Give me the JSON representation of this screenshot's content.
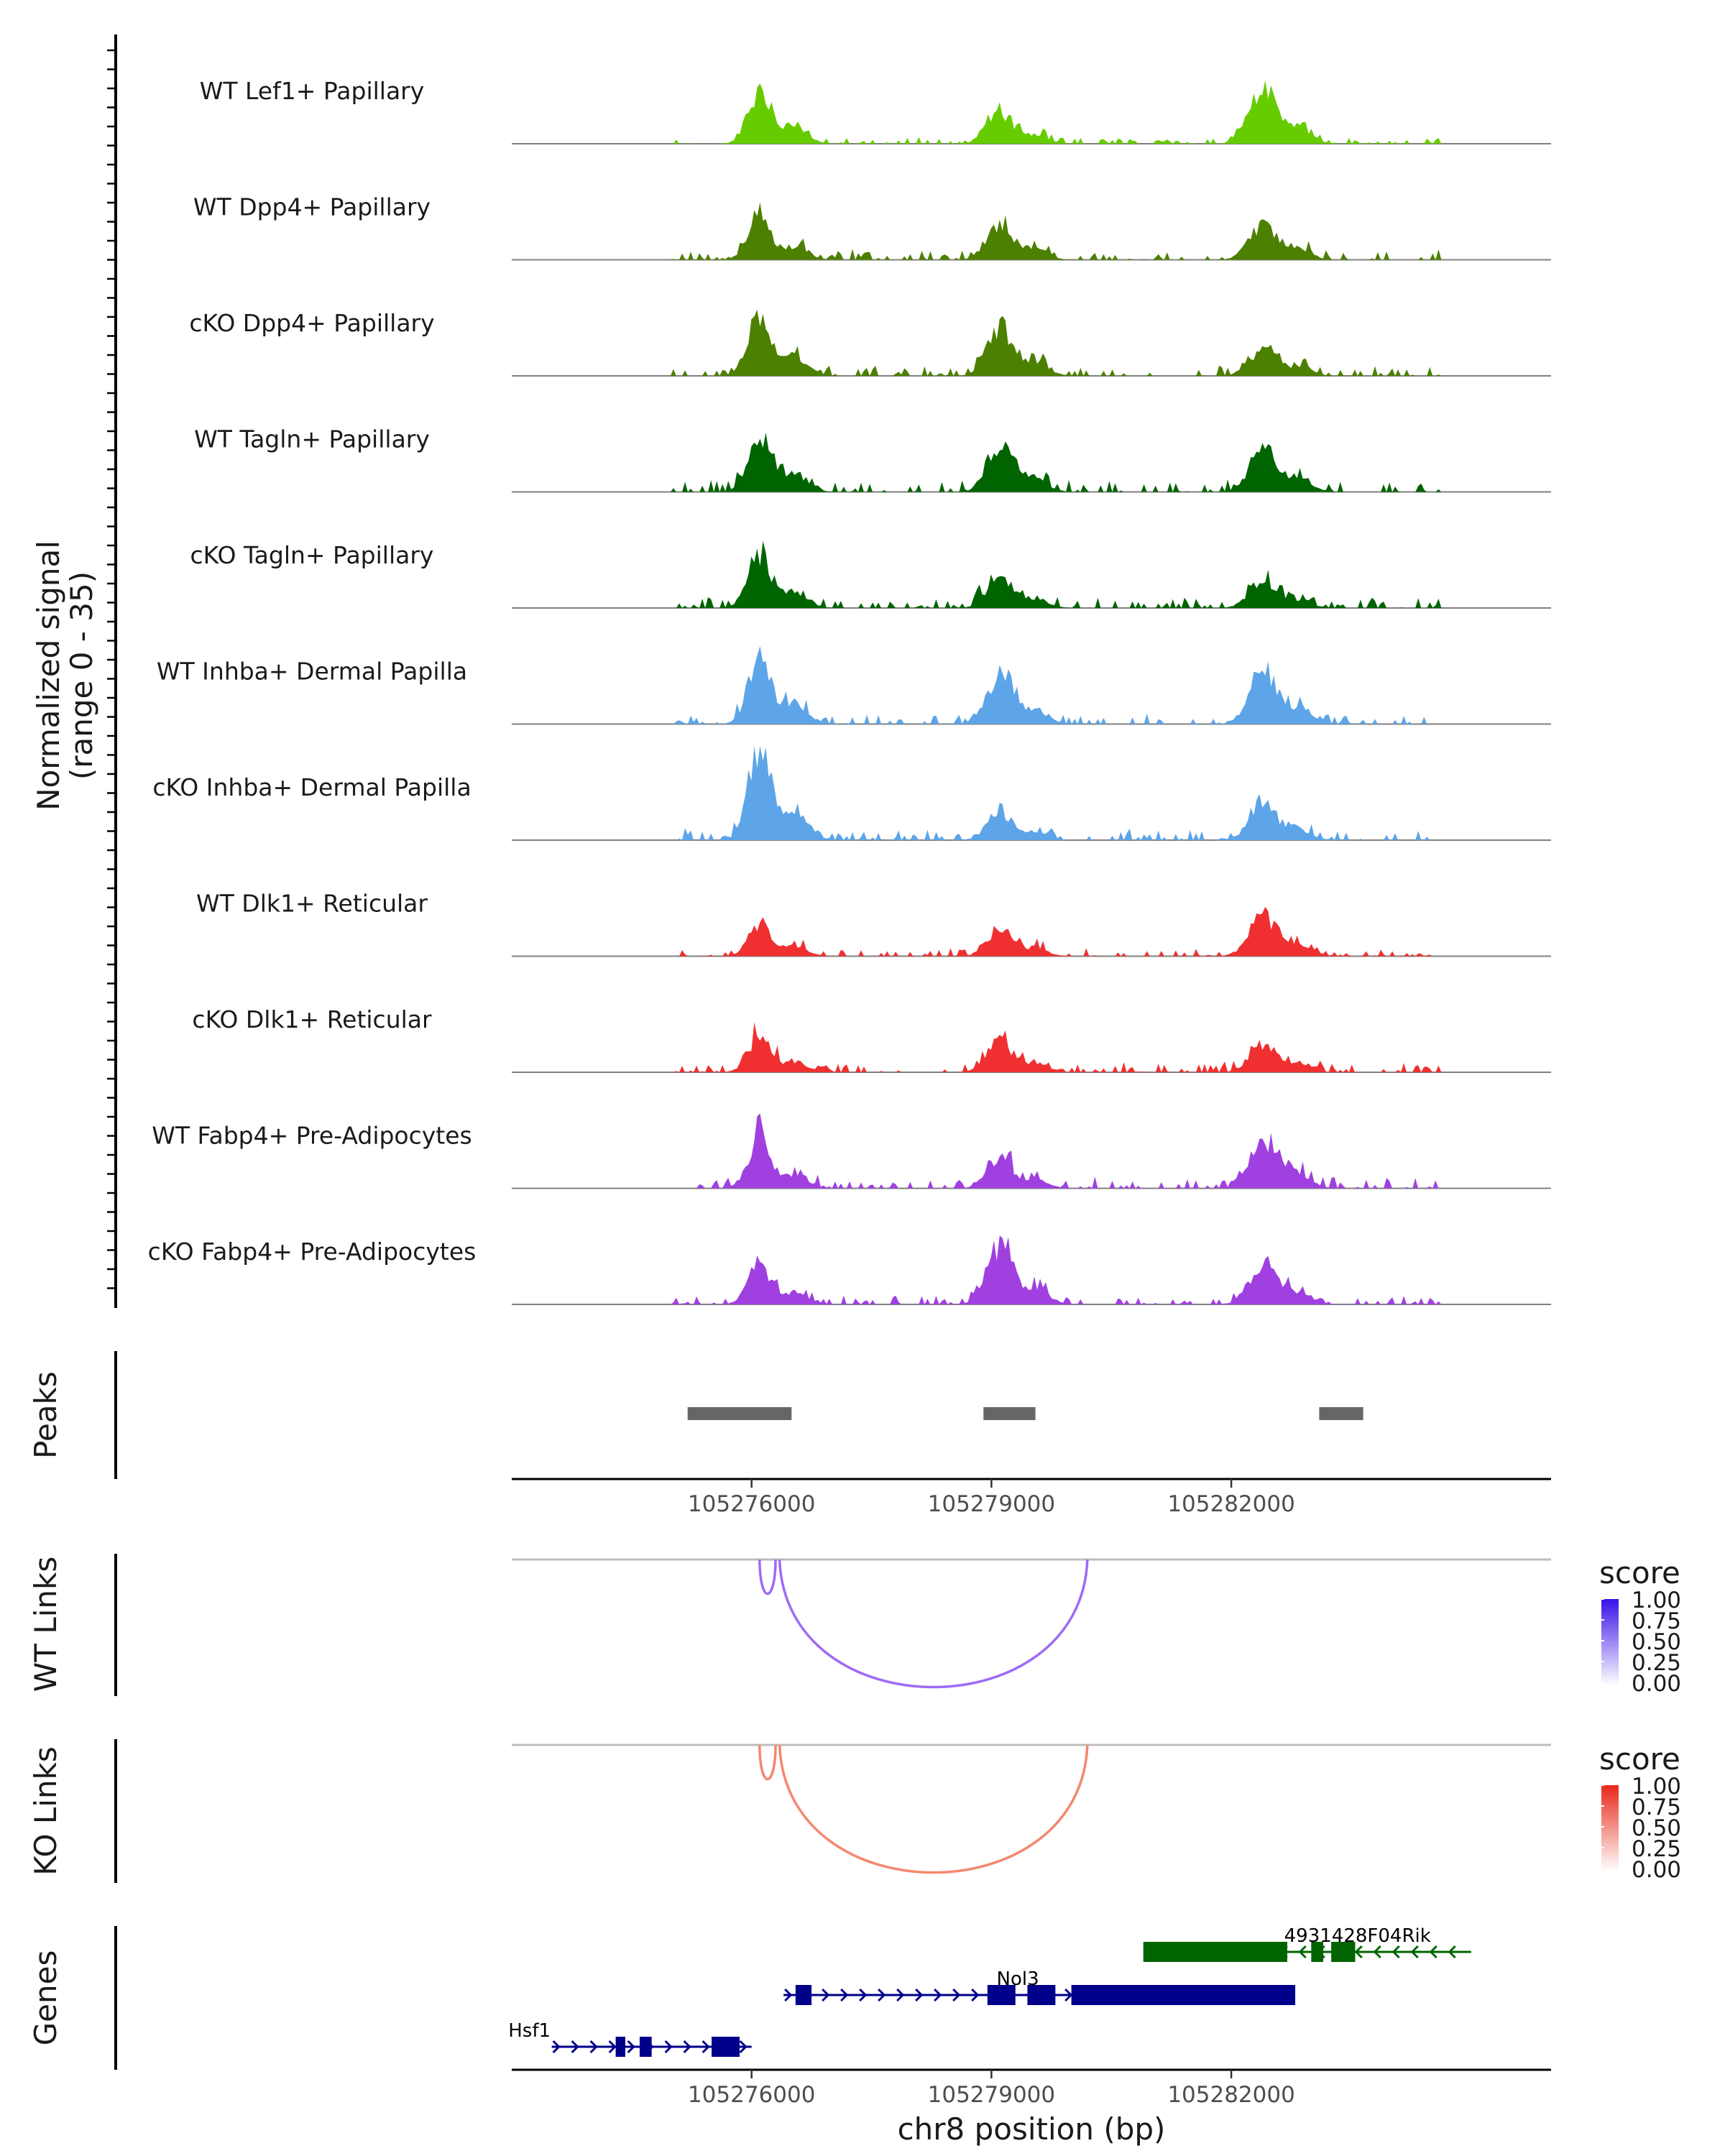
{
  "chart_data": {
    "type": "area",
    "title": "",
    "region": "chr8",
    "xlabel": "chr8 position (bp)",
    "xlim": [
      105273000,
      105286000
    ],
    "xticks": [
      105276000,
      105279000,
      105282000
    ],
    "xtick_labels": [
      "105276000",
      "105279000",
      "105282000"
    ],
    "coverage_ylabel_line1": "Normalized signal",
    "coverage_ylabel_line2": "(range 0 - 35)",
    "ylim": [
      0,
      35
    ],
    "peak_centers_bp": [
      105276100,
      105279100,
      105282400
    ],
    "tracks": [
      {
        "name": "WT Lef1+ Papillary",
        "color": "#66CC00",
        "heights": [
          0.6,
          0.35,
          0.6
        ],
        "noise": 0.06,
        "seed": 11
      },
      {
        "name": "WT Dpp4+ Papillary",
        "color": "#4C8000",
        "heights": [
          0.45,
          0.4,
          0.38
        ],
        "noise": 0.1,
        "seed": 12
      },
      {
        "name": "cKO Dpp4+ Papillary",
        "color": "#4C8000",
        "heights": [
          0.7,
          0.55,
          0.3
        ],
        "noise": 0.1,
        "seed": 13
      },
      {
        "name": "WT Tagln+ Papillary",
        "color": "#006400",
        "heights": [
          0.65,
          0.5,
          0.45
        ],
        "noise": 0.12,
        "seed": 14
      },
      {
        "name": "cKO Tagln+ Papillary",
        "color": "#006400",
        "heights": [
          0.6,
          0.35,
          0.3
        ],
        "noise": 0.12,
        "seed": 15
      },
      {
        "name": "WT Inhba+ Dermal Papilla",
        "color": "#5DA5E8",
        "heights": [
          0.75,
          0.55,
          0.6
        ],
        "noise": 0.1,
        "seed": 16
      },
      {
        "name": "cKO Inhba+ Dermal Papilla",
        "color": "#5DA5E8",
        "heights": [
          1.0,
          0.3,
          0.4
        ],
        "noise": 0.12,
        "seed": 17
      },
      {
        "name": "WT Dlk1+ Reticular",
        "color": "#F03030",
        "heights": [
          0.35,
          0.3,
          0.45
        ],
        "noise": 0.08,
        "seed": 18
      },
      {
        "name": "cKO Dlk1+ Reticular",
        "color": "#F03030",
        "heights": [
          0.4,
          0.35,
          0.3
        ],
        "noise": 0.1,
        "seed": 19
      },
      {
        "name": "WT Fabp4+ Pre-Adipocytes",
        "color": "#A040E0",
        "heights": [
          0.55,
          0.35,
          0.55
        ],
        "noise": 0.12,
        "seed": 20
      },
      {
        "name": "cKO Fabp4+ Pre-Adipocytes",
        "color": "#A040E0",
        "heights": [
          0.45,
          0.65,
          0.45
        ],
        "noise": 0.1,
        "seed": 21
      }
    ],
    "peaks_label": "Peaks",
    "peaks": [
      {
        "start": 105275200,
        "end": 105276500
      },
      {
        "start": 105278900,
        "end": 105279550
      },
      {
        "start": 105283100,
        "end": 105283650
      }
    ],
    "links": [
      {
        "track": "WT Links",
        "color_high": "#3A10E8",
        "color_low": "#FFFFFF",
        "line_color": "#9E6BF5",
        "legend_title": "score",
        "legend_labels": [
          "1.00",
          "0.75",
          "0.50",
          "0.25",
          "0.00"
        ],
        "arcs": [
          {
            "start": 105276100,
            "end": 105276300,
            "score": 0.55
          },
          {
            "start": 105276350,
            "end": 105280200,
            "score": 0.55
          }
        ]
      },
      {
        "track": "KO Links",
        "color_high": "#E8281A",
        "color_low": "#FFFFFF",
        "line_color": "#F58770",
        "legend_title": "score",
        "legend_labels": [
          "1.00",
          "0.75",
          "0.50",
          "0.25",
          "0.00"
        ],
        "arcs": [
          {
            "start": 105276100,
            "end": 105276300,
            "score": 0.55
          },
          {
            "start": 105276350,
            "end": 105280200,
            "score": 0.55
          }
        ]
      }
    ],
    "genes_label": "Genes",
    "genes": [
      {
        "name": "4931428F04Rik",
        "strand": "-",
        "color": "#006400",
        "row": 0,
        "start": 105280900,
        "end": 105285000,
        "exons": [
          [
            105280900,
            105282700
          ],
          [
            105283000,
            105283150
          ],
          [
            105283250,
            105283550
          ]
        ]
      },
      {
        "name": "Nol3",
        "strand": "+",
        "color": "#00008B",
        "row": 1,
        "start": 105276400,
        "end": 105282800,
        "exons": [
          [
            105276550,
            105276750
          ],
          [
            105278950,
            105279300
          ],
          [
            105279450,
            105279800
          ],
          [
            105280000,
            105282800
          ]
        ]
      },
      {
        "name": "Hsf1",
        "strand": "+",
        "color": "#00008B",
        "row": 2,
        "start": 105273500,
        "end": 105276000,
        "exons": [
          [
            105274300,
            105274420
          ],
          [
            105274600,
            105274750
          ],
          [
            105275500,
            105275850
          ]
        ]
      }
    ]
  }
}
